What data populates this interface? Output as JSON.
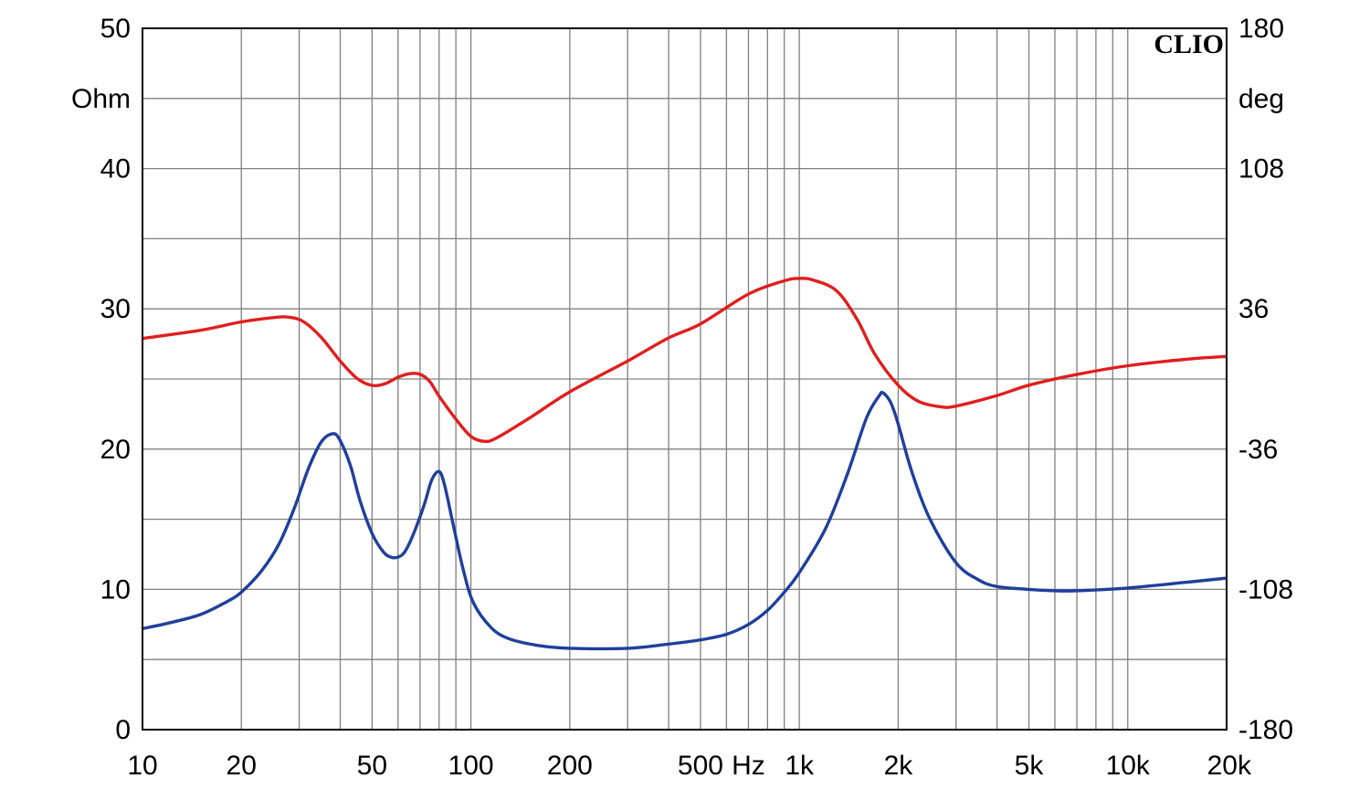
{
  "chart_data": {
    "type": "line",
    "brand": "CLIO",
    "x_scale": "log",
    "xlim": [
      10,
      20000
    ],
    "x_ticks": [
      {
        "value": 10,
        "label": "10"
      },
      {
        "value": 20,
        "label": "20"
      },
      {
        "value": 50,
        "label": "50"
      },
      {
        "value": 100,
        "label": "100"
      },
      {
        "value": 200,
        "label": "200"
      },
      {
        "value": 500,
        "label": "500"
      },
      {
        "value": 1000,
        "label": "1k"
      },
      {
        "value": 2000,
        "label": "2k"
      },
      {
        "value": 5000,
        "label": "5k"
      },
      {
        "value": 10000,
        "label": "10k"
      },
      {
        "value": 20000,
        "label": "20k"
      }
    ],
    "x_unit_label": "Hz",
    "y_left": {
      "unit": "Ohm",
      "ylim": [
        0,
        50
      ],
      "ticks": [
        {
          "value": 0,
          "label": "0"
        },
        {
          "value": 10,
          "label": "10"
        },
        {
          "value": 20,
          "label": "20"
        },
        {
          "value": 30,
          "label": "30"
        },
        {
          "value": 40,
          "label": "40"
        },
        {
          "value": 50,
          "label": "50"
        }
      ]
    },
    "y_right": {
      "unit": "deg",
      "ylim": [
        -180,
        180
      ],
      "ticks": [
        {
          "value": -180,
          "label": "-180"
        },
        {
          "value": -108,
          "label": "-108"
        },
        {
          "value": -36,
          "label": "-36"
        },
        {
          "value": 36,
          "label": "36"
        },
        {
          "value": 108,
          "label": "108"
        },
        {
          "value": 180,
          "label": "180"
        }
      ]
    },
    "grid": true,
    "series": [
      {
        "key": "impedance",
        "axis": "left",
        "color": "#1f3f9c",
        "points": [
          [
            10,
            7.2
          ],
          [
            12,
            7.6
          ],
          [
            15,
            8.2
          ],
          [
            18,
            9.1
          ],
          [
            20,
            9.8
          ],
          [
            23,
            11.3
          ],
          [
            26,
            13.2
          ],
          [
            29,
            15.8
          ],
          [
            32,
            18.6
          ],
          [
            35,
            20.5
          ],
          [
            38,
            21.1
          ],
          [
            40,
            20.6
          ],
          [
            43,
            18.8
          ],
          [
            46,
            16.3
          ],
          [
            50,
            14.0
          ],
          [
            54,
            12.7
          ],
          [
            57,
            12.3
          ],
          [
            60,
            12.3
          ],
          [
            63,
            12.7
          ],
          [
            67,
            14.0
          ],
          [
            72,
            16.0
          ],
          [
            76,
            17.8
          ],
          [
            80,
            18.4
          ],
          [
            83,
            17.5
          ],
          [
            88,
            14.8
          ],
          [
            95,
            11.3
          ],
          [
            102,
            9.0
          ],
          [
            115,
            7.3
          ],
          [
            130,
            6.5
          ],
          [
            160,
            6.0
          ],
          [
            200,
            5.8
          ],
          [
            300,
            5.8
          ],
          [
            400,
            6.1
          ],
          [
            500,
            6.4
          ],
          [
            600,
            6.8
          ],
          [
            700,
            7.5
          ],
          [
            800,
            8.5
          ],
          [
            900,
            9.8
          ],
          [
            1000,
            11.2
          ],
          [
            1200,
            14.3
          ],
          [
            1400,
            18.2
          ],
          [
            1600,
            22.2
          ],
          [
            1750,
            23.8
          ],
          [
            1800,
            24.0
          ],
          [
            1900,
            23.3
          ],
          [
            2000,
            21.8
          ],
          [
            2200,
            18.4
          ],
          [
            2500,
            15.0
          ],
          [
            3000,
            11.9
          ],
          [
            3500,
            10.7
          ],
          [
            4000,
            10.2
          ],
          [
            5000,
            10.0
          ],
          [
            6000,
            9.9
          ],
          [
            7000,
            9.9
          ],
          [
            10000,
            10.1
          ],
          [
            15000,
            10.5
          ],
          [
            20000,
            10.8
          ]
        ]
      },
      {
        "key": "phase",
        "axis": "right",
        "color": "#e01e1e",
        "points": [
          [
            10,
            20.8
          ],
          [
            15,
            25
          ],
          [
            20,
            29.3
          ],
          [
            25,
            31.5
          ],
          [
            28,
            31.7
          ],
          [
            31,
            29.3
          ],
          [
            35,
            21.4
          ],
          [
            40,
            9.2
          ],
          [
            45,
            0.3
          ],
          [
            50,
            -3.3
          ],
          [
            55,
            -2.3
          ],
          [
            60,
            0.9
          ],
          [
            65,
            2.7
          ],
          [
            70,
            2.4
          ],
          [
            75,
            -1.4
          ],
          [
            80,
            -8.8
          ],
          [
            90,
            -20.6
          ],
          [
            100,
            -29.5
          ],
          [
            110,
            -32
          ],
          [
            120,
            -30.2
          ],
          [
            150,
            -20.3
          ],
          [
            200,
            -6.6
          ],
          [
            300,
            9.2
          ],
          [
            400,
            21.1
          ],
          [
            500,
            28.2
          ],
          [
            700,
            43.6
          ],
          [
            900,
            50.4
          ],
          [
            1000,
            51.6
          ],
          [
            1100,
            50.8
          ],
          [
            1300,
            45.2
          ],
          [
            1500,
            30.5
          ],
          [
            1700,
            12.6
          ],
          [
            2000,
            -3.2
          ],
          [
            2300,
            -11.4
          ],
          [
            2700,
            -14.3
          ],
          [
            3000,
            -13.9
          ],
          [
            4000,
            -8.5
          ],
          [
            5000,
            -3.2
          ],
          [
            7000,
            2.3
          ],
          [
            10000,
            6.8
          ],
          [
            15000,
            10.1
          ],
          [
            20000,
            11.6
          ]
        ]
      }
    ]
  }
}
